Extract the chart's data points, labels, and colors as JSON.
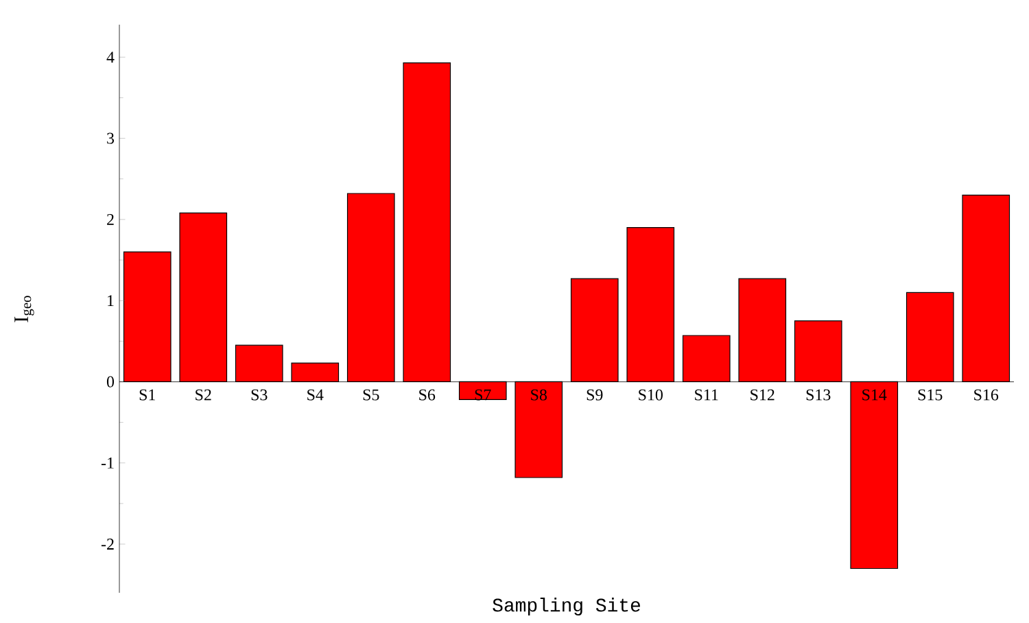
{
  "chart_data": {
    "type": "bar",
    "xlabel": "Sampling Site",
    "ylabel": "I$_{geo}$",
    "categories": [
      "S1",
      "S2",
      "S3",
      "S4",
      "S5",
      "S6",
      "S7",
      "S8",
      "S9",
      "S10",
      "S11",
      "S12",
      "S13",
      "S14",
      "S15",
      "S16"
    ],
    "values": [
      1.6,
      2.08,
      0.45,
      0.23,
      2.32,
      3.93,
      -0.22,
      -1.18,
      1.27,
      1.9,
      0.57,
      1.27,
      0.75,
      -2.3,
      1.1,
      2.3
    ],
    "color": "#ff0000",
    "ylim": [
      -2.6,
      4.4
    ],
    "yticks": [
      -2,
      -1,
      0,
      1,
      2,
      3,
      4
    ]
  }
}
